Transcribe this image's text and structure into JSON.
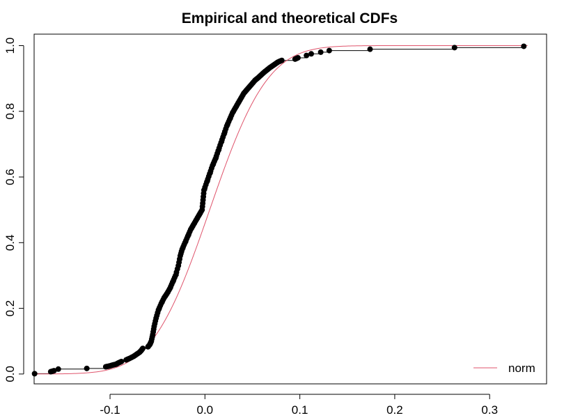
{
  "chart_data": {
    "type": "line",
    "title": "Empirical and theoretical CDFs",
    "xlabel": "",
    "ylabel": "",
    "xlim": [
      -0.18,
      0.36
    ],
    "ylim": [
      -0.03,
      1.035
    ],
    "x_ticks": [
      -0.1,
      0.0,
      0.1,
      0.2,
      0.3
    ],
    "x_tick_labels": [
      "-0.1",
      "0.0",
      "0.1",
      "0.2",
      "0.3"
    ],
    "y_ticks": [
      0.0,
      0.2,
      0.4,
      0.6,
      0.8,
      1.0
    ],
    "y_tick_labels": [
      "0.0",
      "0.2",
      "0.4",
      "0.6",
      "0.8",
      "1.0"
    ],
    "grid": false,
    "legend": {
      "position": "bottom-right",
      "entries": [
        {
          "label": "norm",
          "color": "#DF536B"
        }
      ]
    },
    "series": [
      {
        "name": "empirical",
        "kind": "ecdf-step",
        "color": "#000000",
        "points": [
          [
            -0.1795,
            0.001
          ],
          [
            -0.1625,
            0.007
          ],
          [
            -0.159,
            0.01
          ],
          [
            -0.1545,
            0.015
          ],
          [
            -0.1245,
            0.017
          ],
          [
            -0.1045,
            0.022
          ],
          [
            -0.101,
            0.024
          ],
          [
            -0.0975,
            0.027
          ],
          [
            -0.0935,
            0.03
          ],
          [
            -0.091,
            0.034
          ],
          [
            -0.088,
            0.038
          ],
          [
            -0.083,
            0.043
          ],
          [
            -0.079,
            0.048
          ],
          [
            -0.075,
            0.054
          ],
          [
            -0.072,
            0.06
          ],
          [
            -0.069,
            0.066
          ],
          [
            -0.067,
            0.072
          ],
          [
            -0.0655,
            0.078
          ],
          [
            -0.06,
            0.083
          ],
          [
            -0.058,
            0.09
          ],
          [
            -0.0565,
            0.1
          ],
          [
            -0.055,
            0.12
          ],
          [
            -0.0535,
            0.145
          ],
          [
            -0.0515,
            0.17
          ],
          [
            -0.049,
            0.195
          ],
          [
            -0.046,
            0.215
          ],
          [
            -0.043,
            0.232
          ],
          [
            -0.04,
            0.245
          ],
          [
            -0.037,
            0.26
          ],
          [
            -0.034,
            0.28
          ],
          [
            -0.031,
            0.3
          ],
          [
            -0.028,
            0.33
          ],
          [
            -0.026,
            0.36
          ],
          [
            -0.024,
            0.38
          ],
          [
            -0.021,
            0.4
          ],
          [
            -0.018,
            0.42
          ],
          [
            -0.015,
            0.44
          ],
          [
            -0.012,
            0.455
          ],
          [
            -0.009,
            0.47
          ],
          [
            -0.006,
            0.485
          ],
          [
            -0.003,
            0.5
          ],
          [
            -0.002,
            0.53
          ],
          [
            -0.001,
            0.56
          ],
          [
            0.002,
            0.585
          ],
          [
            0.005,
            0.61
          ],
          [
            0.008,
            0.635
          ],
          [
            0.011,
            0.655
          ],
          [
            0.014,
            0.68
          ],
          [
            0.017,
            0.705
          ],
          [
            0.02,
            0.73
          ],
          [
            0.023,
            0.755
          ],
          [
            0.026,
            0.775
          ],
          [
            0.029,
            0.795
          ],
          [
            0.032,
            0.81
          ],
          [
            0.035,
            0.825
          ],
          [
            0.038,
            0.84
          ],
          [
            0.041,
            0.855
          ],
          [
            0.044,
            0.865
          ],
          [
            0.047,
            0.875
          ],
          [
            0.05,
            0.885
          ],
          [
            0.053,
            0.895
          ],
          [
            0.056,
            0.902
          ],
          [
            0.059,
            0.91
          ],
          [
            0.062,
            0.918
          ],
          [
            0.065,
            0.925
          ],
          [
            0.068,
            0.932
          ],
          [
            0.071,
            0.938
          ],
          [
            0.074,
            0.944
          ],
          [
            0.077,
            0.95
          ],
          [
            0.081,
            0.955
          ],
          [
            0.095,
            0.959
          ],
          [
            0.098,
            0.963
          ],
          [
            0.107,
            0.97
          ],
          [
            0.112,
            0.975
          ],
          [
            0.122,
            0.98
          ],
          [
            0.131,
            0.985
          ],
          [
            0.174,
            0.989
          ],
          [
            0.263,
            0.994
          ],
          [
            0.336,
            0.998
          ]
        ]
      },
      {
        "name": "norm",
        "kind": "theoretical-cdf",
        "color": "#DF536B",
        "mean": 0.005,
        "sd": 0.048
      }
    ]
  }
}
